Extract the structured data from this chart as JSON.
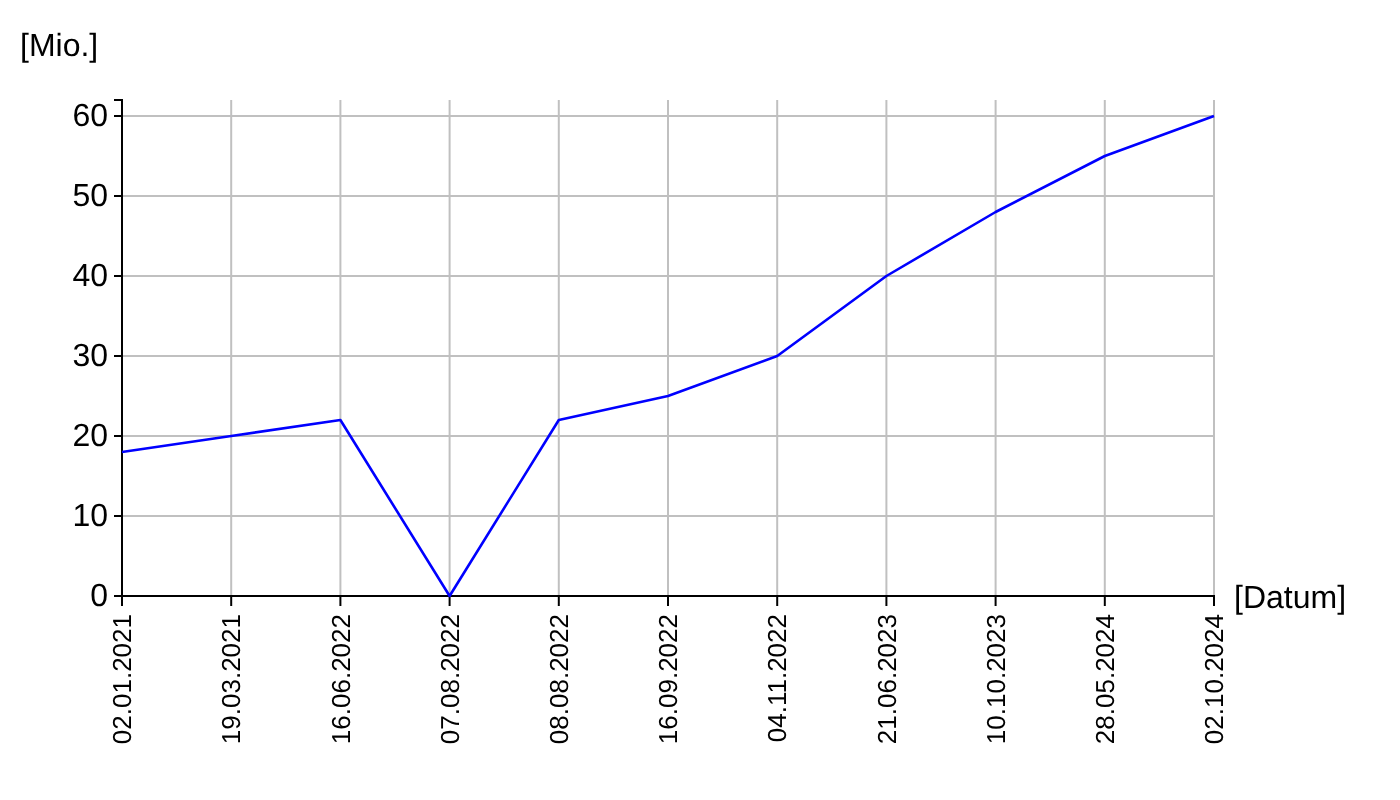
{
  "chart_data": {
    "type": "line",
    "categories": [
      "02.01.2021",
      "19.03.2021",
      "16.06.2022",
      "07.08.2022",
      "08.08.2022",
      "16.09.2022",
      "04.11.2022",
      "21.06.2023",
      "10.10.2023",
      "28.05.2024",
      "02.10.2024"
    ],
    "series": [
      {
        "color": "#0000ff",
        "values": [
          18,
          20,
          22,
          0,
          22,
          25,
          30,
          40,
          48,
          55,
          60
        ]
      }
    ],
    "xlabel": "[Datum]",
    "ylabel": "[Mio.]",
    "ylim": [
      0,
      62
    ],
    "yticks": [
      0,
      10,
      20,
      30,
      40,
      50,
      60
    ],
    "grid": true,
    "marker": "none",
    "line_style": "solid"
  }
}
